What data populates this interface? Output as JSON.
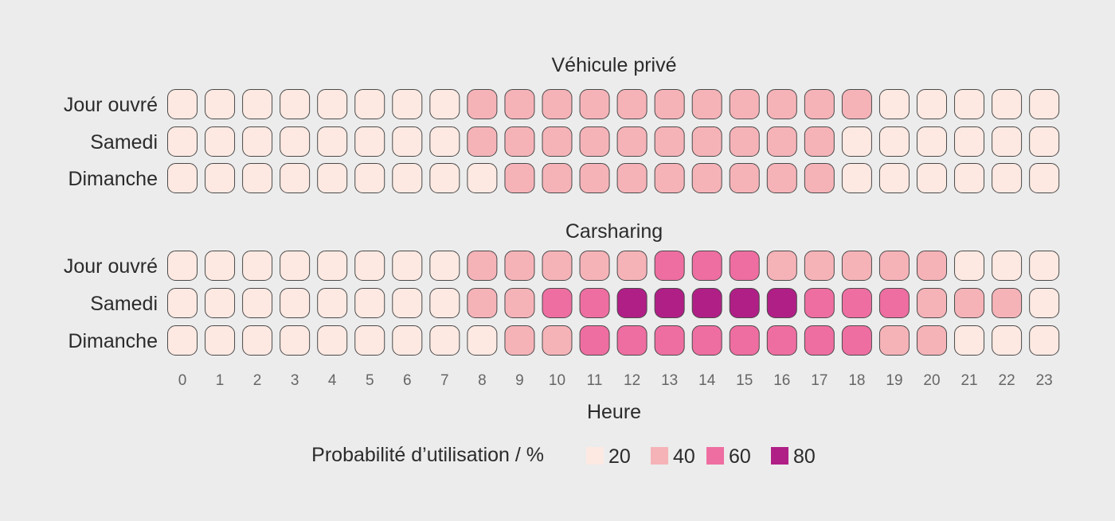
{
  "chart_data": {
    "type": "heatmap",
    "x": [
      0,
      1,
      2,
      3,
      4,
      5,
      6,
      7,
      8,
      9,
      10,
      11,
      12,
      13,
      14,
      15,
      16,
      17,
      18,
      19,
      20,
      21,
      22,
      23
    ],
    "xlabel": "Heure",
    "rows": [
      "Jour ouvré",
      "Samedi",
      "Dimanche"
    ],
    "panels": [
      {
        "title": "Véhicule privé",
        "values": [
          [
            20,
            20,
            20,
            20,
            20,
            20,
            20,
            20,
            40,
            40,
            40,
            40,
            40,
            40,
            40,
            40,
            40,
            40,
            40,
            20,
            20,
            20,
            20,
            20
          ],
          [
            20,
            20,
            20,
            20,
            20,
            20,
            20,
            20,
            40,
            40,
            40,
            40,
            40,
            40,
            40,
            40,
            40,
            40,
            20,
            20,
            20,
            20,
            20,
            20
          ],
          [
            20,
            20,
            20,
            20,
            20,
            20,
            20,
            20,
            20,
            40,
            40,
            40,
            40,
            40,
            40,
            40,
            40,
            40,
            20,
            20,
            20,
            20,
            20,
            20
          ]
        ]
      },
      {
        "title": "Carsharing",
        "values": [
          [
            20,
            20,
            20,
            20,
            20,
            20,
            20,
            20,
            40,
            40,
            40,
            40,
            40,
            60,
            60,
            60,
            40,
            40,
            40,
            40,
            40,
            20,
            20,
            20
          ],
          [
            20,
            20,
            20,
            20,
            20,
            20,
            20,
            20,
            40,
            40,
            60,
            60,
            80,
            80,
            80,
            80,
            80,
            60,
            60,
            60,
            40,
            40,
            40,
            20
          ],
          [
            20,
            20,
            20,
            20,
            20,
            20,
            20,
            20,
            20,
            40,
            40,
            60,
            60,
            60,
            60,
            60,
            60,
            60,
            60,
            40,
            40,
            20,
            20,
            20
          ]
        ]
      }
    ],
    "legend": {
      "title": "Probabilité d’utilisation / %",
      "levels": [
        20,
        40,
        60,
        80
      ],
      "placement": "bottom"
    },
    "colors": {
      "20": "#fde9e2",
      "40": "#f5b3b8",
      "60": "#ee6ea1",
      "80": "#b01f86",
      "stroke": "#4a4a4a"
    }
  }
}
